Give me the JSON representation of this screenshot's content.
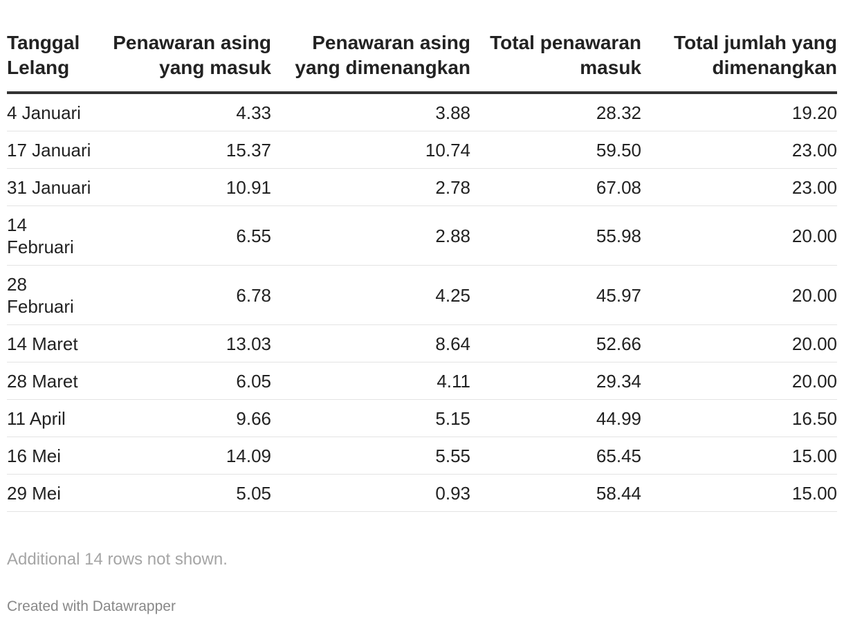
{
  "chart_data": {
    "type": "table",
    "columns": [
      "Tanggal Lelang",
      "Penawaran asing yang masuk",
      "Penawaran asing yang dimenangkan",
      "Total penawaran masuk",
      "Total jumlah yang dimenangkan"
    ],
    "rows": [
      [
        "4 Januari",
        "4.33",
        "3.88",
        "28.32",
        "19.20"
      ],
      [
        "17 Januari",
        "15.37",
        "10.74",
        "59.50",
        "23.00"
      ],
      [
        "31 Januari",
        "10.91",
        "2.78",
        "67.08",
        "23.00"
      ],
      [
        "14 Februari",
        "6.55",
        "2.88",
        "55.98",
        "20.00"
      ],
      [
        "28 Februari",
        "6.78",
        "4.25",
        "45.97",
        "20.00"
      ],
      [
        "14 Maret",
        "13.03",
        "8.64",
        "52.66",
        "20.00"
      ],
      [
        "28 Maret",
        "6.05",
        "4.11",
        "29.34",
        "20.00"
      ],
      [
        "11 April",
        "9.66",
        "5.15",
        "44.99",
        "16.50"
      ],
      [
        "16 Mei",
        "14.09",
        "5.55",
        "65.45",
        "15.00"
      ],
      [
        "29 Mei",
        "5.05",
        "0.93",
        "58.44",
        "15.00"
      ]
    ],
    "note": "Additional 14 rows not shown."
  },
  "footer": {
    "credit": "Created with Datawrapper"
  }
}
